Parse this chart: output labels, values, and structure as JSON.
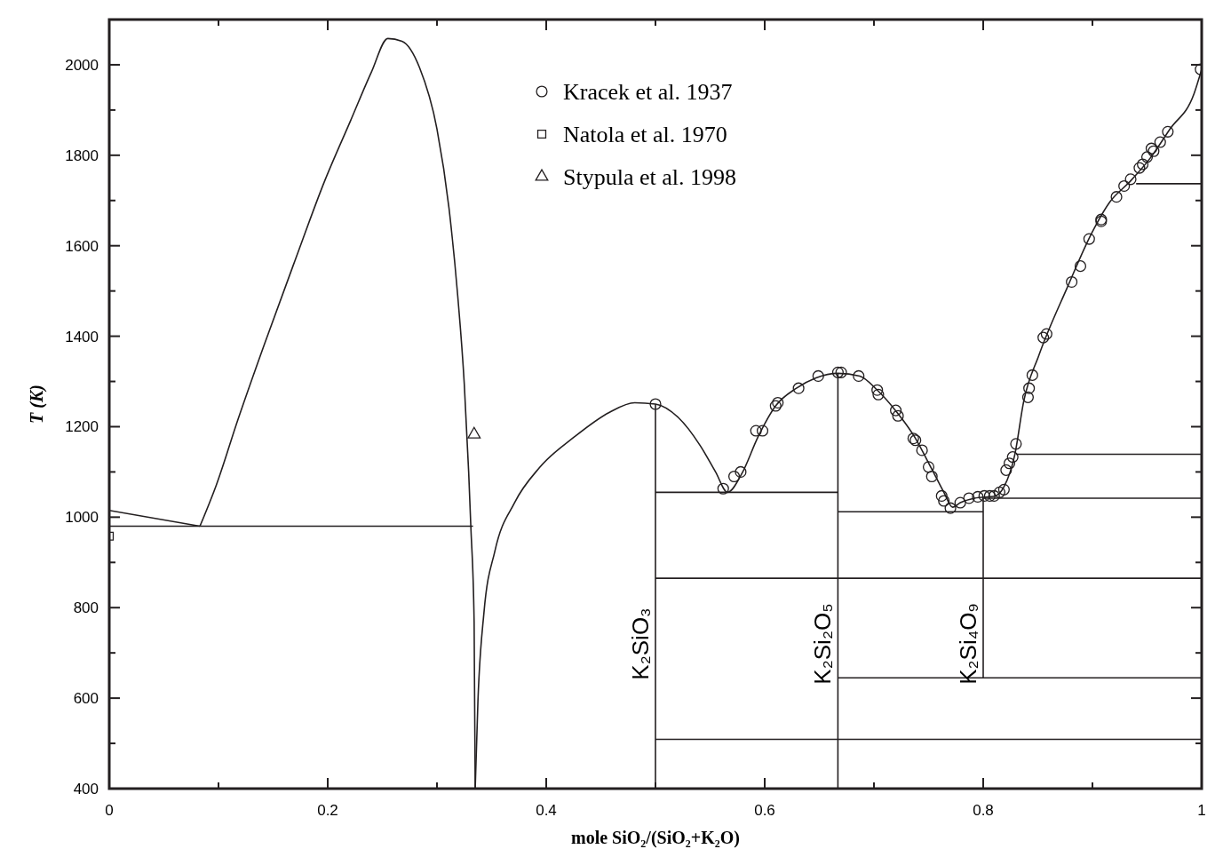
{
  "chart_data": {
    "type": "line",
    "xlabel": "mole SiO₂/(SiO₂+K₂O)",
    "ylabel": "T (K)",
    "xlim": [
      0,
      1
    ],
    "ylim": [
      400,
      2100
    ],
    "xticks": [
      0,
      {
        "value": 0.1,
        "label": null
      },
      0.2,
      {
        "value": 0.3,
        "label": null
      },
      0.4,
      {
        "value": 0.5,
        "label": null
      },
      0.6,
      {
        "value": 0.7,
        "label": null
      },
      0.8,
      {
        "value": 0.9,
        "label": null
      },
      1
    ],
    "yticks": [
      400,
      {
        "value": 500,
        "label": null
      },
      600,
      {
        "value": 700,
        "label": null
      },
      800,
      {
        "value": 900,
        "label": null
      },
      1000,
      {
        "value": 1100,
        "label": null
      },
      1200,
      {
        "value": 1300,
        "label": null
      },
      1400,
      {
        "value": 1500,
        "label": null
      },
      1600,
      {
        "value": 1700,
        "label": null
      },
      1800,
      {
        "value": 1900,
        "label": null
      },
      2000
    ],
    "legend": "top",
    "series": [
      {
        "color": "#231f20",
        "x": [
          0,
          0.083
        ],
        "values": [
          1015,
          980
        ]
      },
      {
        "color": "#231f20",
        "x": [
          0.083,
          0.098,
          0.118,
          0.142,
          0.17,
          0.197,
          0.221,
          0.24,
          0.255,
          0.268,
          0.284,
          0.3,
          0.311,
          0.319,
          0.325,
          0.329,
          0.331,
          0.334,
          0.335
        ],
        "values": [
          980,
          1071,
          1217,
          1382,
          1567,
          1742,
          1877,
          1984,
          2058,
          2052,
          1994,
          1858,
          1683,
          1489,
          1294,
          1100,
          979,
          769,
          400
        ]
      },
      {
        "color": "#231f20",
        "x": [
          0.335,
          0.3375,
          0.343,
          0.353,
          0.371,
          0.394,
          0.426,
          0.458,
          0.481,
          0.5,
          0.521,
          0.541,
          0.555,
          0.566,
          0.579,
          0.594,
          0.61,
          0.629,
          0.647,
          0.667,
          0.687,
          0.703,
          0.721,
          0.737,
          0.753,
          0.764,
          0.772,
          0.779,
          0.792,
          0.811,
          0.819,
          0.829,
          0.837,
          0.851,
          0.877,
          0.9,
          0.916,
          0.934,
          0.953,
          0.971,
          0.993,
          1
        ],
        "values": [
          400,
          594,
          789,
          925,
          1032,
          1110,
          1178,
          1232,
          1253,
          1250,
          1220,
          1158,
          1100,
          1055,
          1096,
          1178,
          1246,
          1285,
          1308,
          1318,
          1312,
          1281,
          1232,
          1178,
          1106,
          1055,
          1022,
          1032,
          1042,
          1047,
          1067,
          1139,
          1255,
          1358,
          1508,
          1631,
          1697,
          1741,
          1794,
          1858,
          1936,
          1990
        ]
      },
      {
        "color": "#231f20",
        "x": [
          0,
          0.333
        ],
        "values": [
          980,
          980
        ]
      },
      {
        "color": "#231f20",
        "x": [
          0.5,
          0.667
        ],
        "values": [
          1055,
          1055
        ]
      },
      {
        "color": "#231f20",
        "x": [
          0.5,
          1
        ],
        "values": [
          865,
          865
        ]
      },
      {
        "color": "#231f20",
        "x": [
          0.667,
          0.8
        ],
        "values": [
          1012,
          1012
        ]
      },
      {
        "color": "#231f20",
        "x": [
          0.8,
          1
        ],
        "values": [
          1042,
          1042
        ]
      },
      {
        "color": "#231f20",
        "x": [
          0.83,
          1
        ],
        "values": [
          1139,
          1139
        ]
      },
      {
        "color": "#231f20",
        "x": [
          0.94,
          1
        ],
        "values": [
          1737,
          1737
        ]
      },
      {
        "color": "#231f20",
        "x": [
          0.667,
          1
        ],
        "values": [
          645,
          645
        ]
      },
      {
        "color": "#231f20",
        "x": [
          0.5,
          1
        ],
        "values": [
          509,
          509
        ]
      },
      {
        "color": "#231f20",
        "x": [
          0.5,
          0.5
        ],
        "values": [
          400,
          1250
        ]
      },
      {
        "color": "#231f20",
        "x": [
          0.667,
          0.667
        ],
        "values": [
          400,
          1318
        ]
      },
      {
        "color": "#231f20",
        "x": [
          0.8,
          0.8
        ],
        "values": [
          645,
          1042
        ]
      },
      {
        "type": "scatter",
        "marker": "circle",
        "name": "Kracek et al. 1937",
        "color": "#231f20",
        "x": [
          0.5,
          0.562,
          0.572,
          0.578,
          0.592,
          0.598,
          0.61,
          0.612,
          0.631,
          0.649,
          0.667,
          0.67,
          0.686,
          0.703,
          0.704,
          0.72,
          0.722,
          0.736,
          0.738,
          0.744,
          0.75,
          0.753,
          0.762,
          0.764,
          0.77,
          0.779,
          0.787,
          0.795,
          0.801,
          0.806,
          0.81,
          0.815,
          0.819,
          0.821,
          0.824,
          0.827,
          0.83,
          0.841,
          0.842,
          0.845,
          0.855,
          0.858,
          0.881,
          0.889,
          0.897,
          0.908,
          0.908,
          0.922,
          0.929,
          0.935,
          0.943,
          0.946,
          0.95,
          0.954,
          0.956,
          0.962,
          0.969,
          0.999
        ],
        "values": [
          1250,
          1063,
          1090,
          1100,
          1191,
          1191,
          1246,
          1253,
          1285,
          1312,
          1320,
          1320,
          1312,
          1281,
          1271,
          1236,
          1224,
          1174,
          1170,
          1148,
          1111,
          1090,
          1047,
          1036,
          1020,
          1032,
          1042,
          1045,
          1047,
          1047,
          1047,
          1055,
          1061,
          1104,
          1119,
          1133,
          1162,
          1265,
          1285,
          1314,
          1397,
          1405,
          1520,
          1555,
          1615,
          1654,
          1658,
          1708,
          1732,
          1747,
          1772,
          1780,
          1796,
          1815,
          1809,
          1829,
          1852,
          1990
        ]
      },
      {
        "type": "scatter",
        "marker": "square",
        "name": "Natola et al. 1970",
        "color": "#231f20",
        "x": [
          0
        ],
        "values": [
          958
        ]
      },
      {
        "type": "scatter",
        "marker": "triangle",
        "name": "Stypula et al. 1998",
        "color": "#231f20",
        "x": [
          0.334
        ],
        "values": [
          1183
        ]
      }
    ],
    "annotations": [
      {
        "text": "K₂SiO₃",
        "x": 0.5,
        "y": 720
      },
      {
        "text": "K₂Si₂O₅",
        "x": 0.667,
        "y": 720
      },
      {
        "text": "K₂Si₄O₉",
        "x": 0.8,
        "y": 720
      }
    ]
  }
}
